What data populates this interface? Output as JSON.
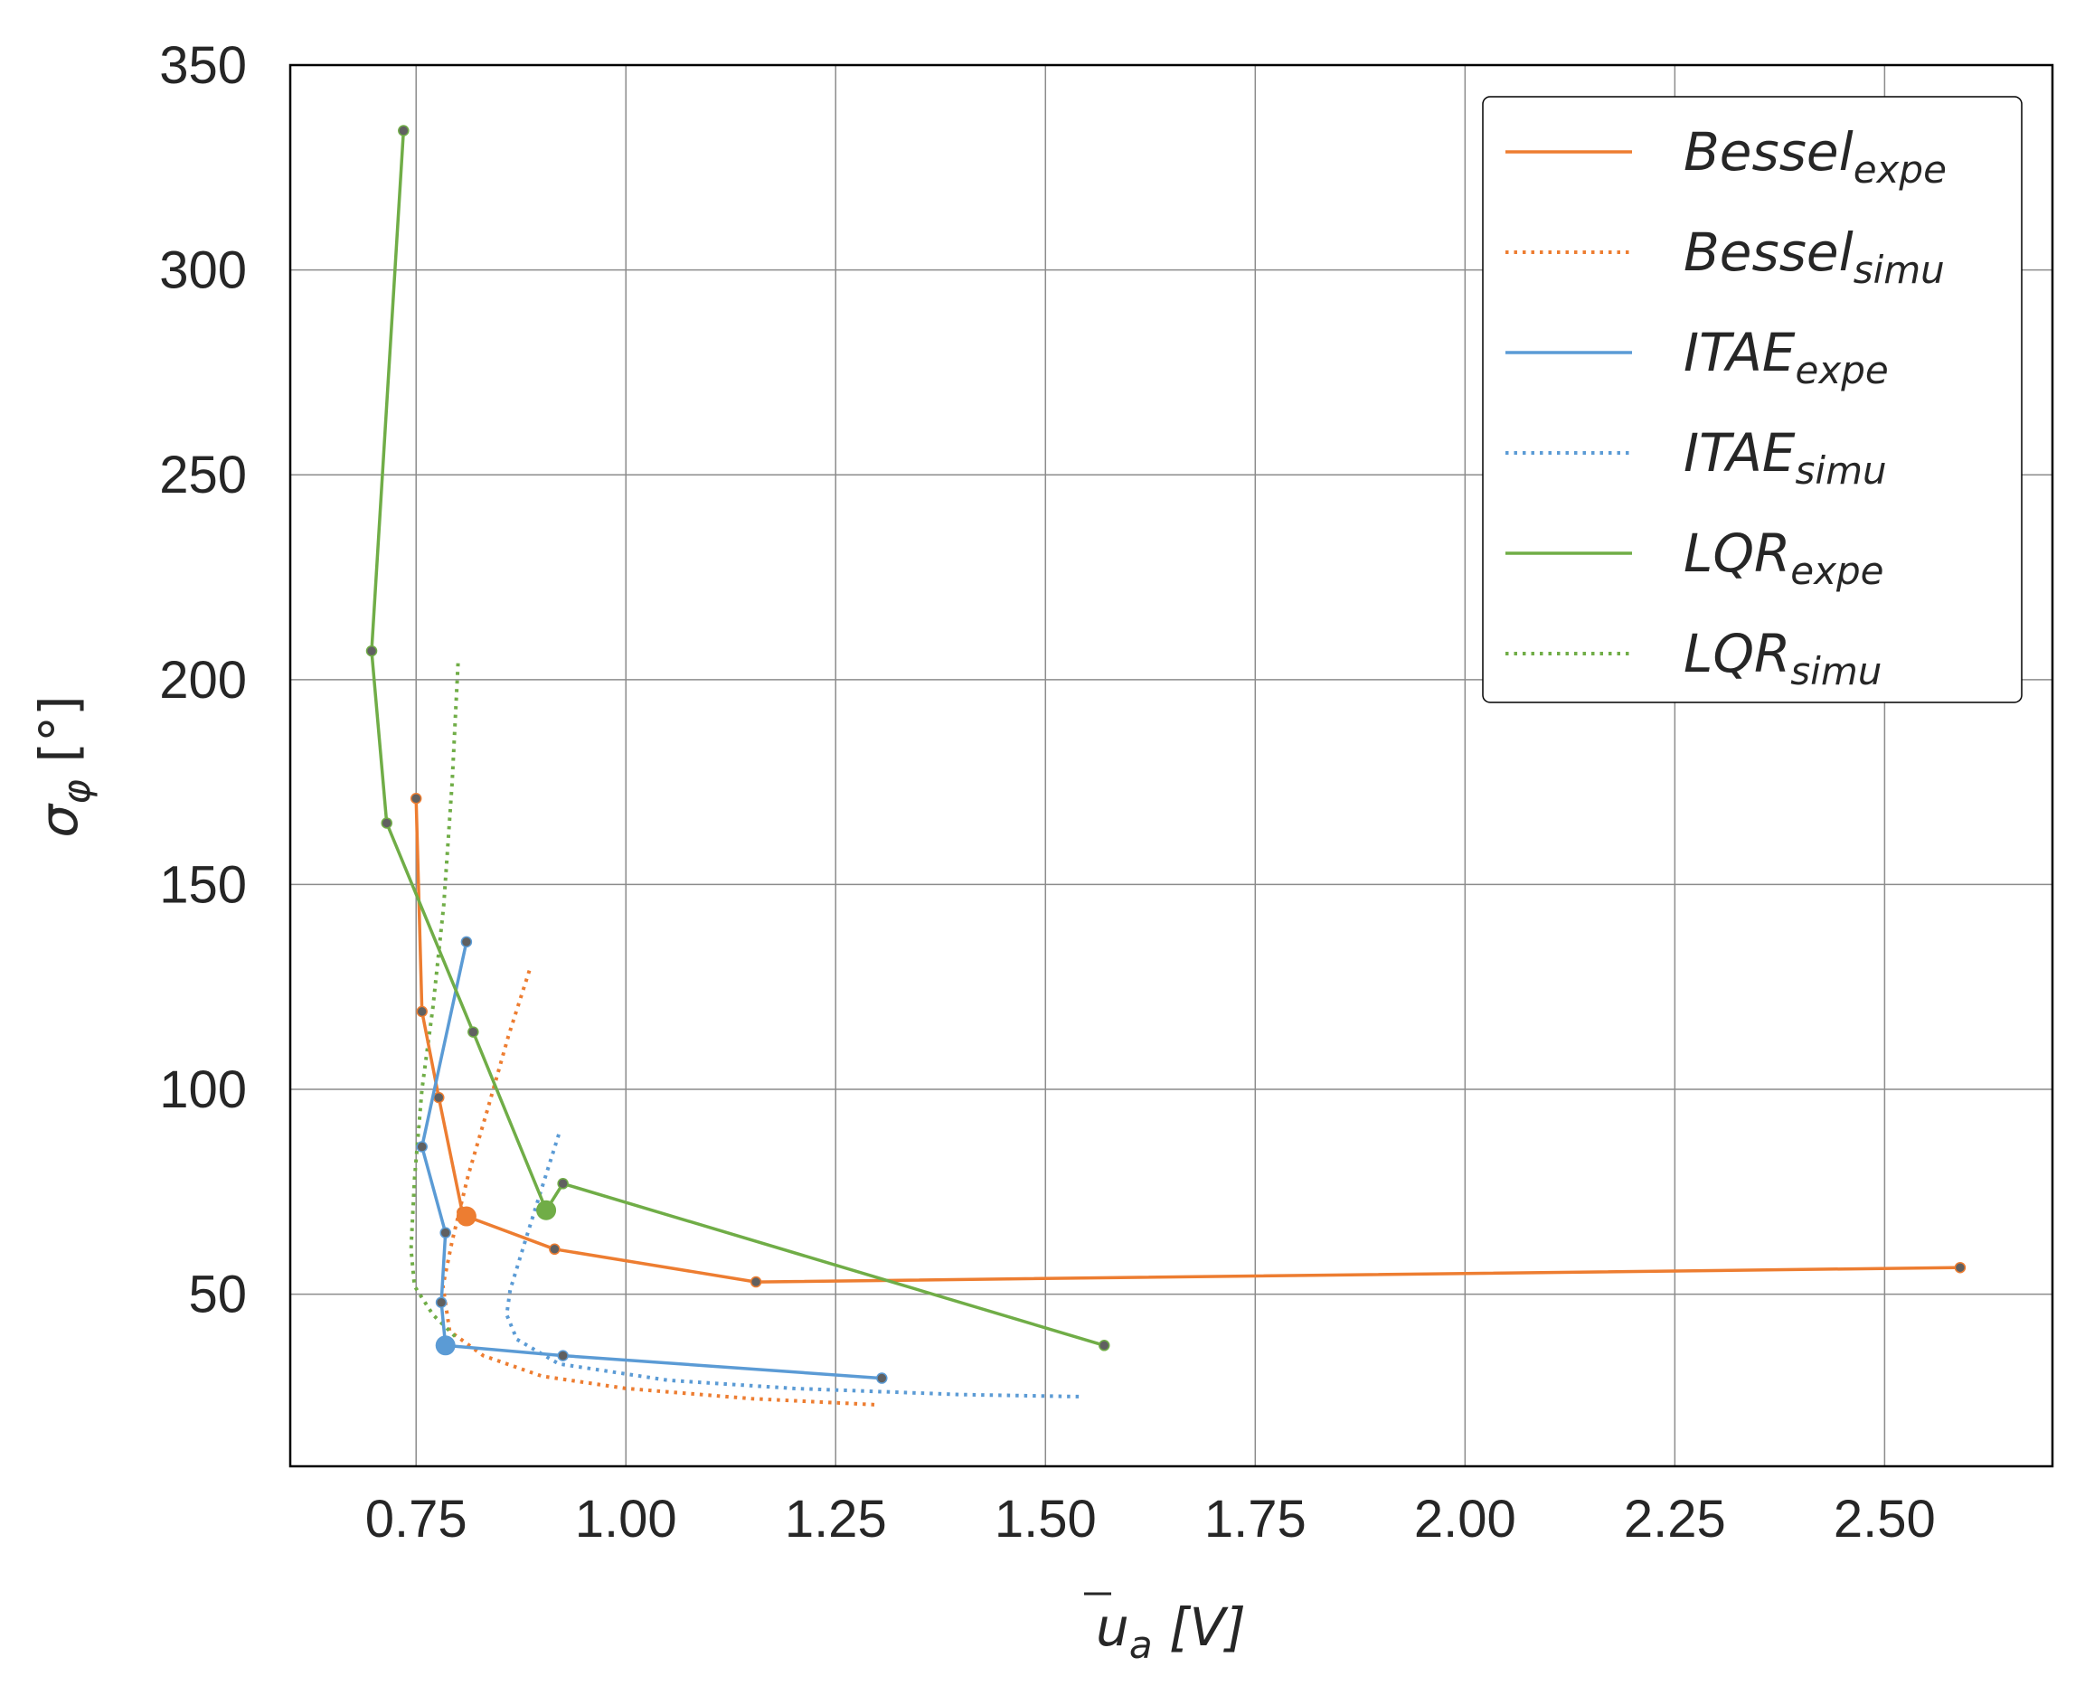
{
  "chart_data": {
    "type": "line",
    "xlabel_main": "u",
    "xlabel_sub": "a",
    "xlabel_unit": "[V]",
    "ylabel_main": "σ",
    "ylabel_sub": "φ",
    "ylabel_unit": "[°]",
    "xlim": [
      0.6,
      2.7
    ],
    "ylim": [
      8,
      350
    ],
    "xticks": [
      0.75,
      1.0,
      1.25,
      1.5,
      1.75,
      2.0,
      2.25,
      2.5
    ],
    "xtick_labels": [
      "0.75",
      "1.00",
      "1.25",
      "1.50",
      "1.75",
      "2.00",
      "2.25",
      "2.50"
    ],
    "yticks": [
      50,
      100,
      150,
      200,
      250,
      300,
      350
    ],
    "ytick_labels": [
      "50",
      "100",
      "150",
      "200",
      "250",
      "300",
      "350"
    ],
    "grid": true,
    "legend_position": "top-right",
    "series": [
      {
        "label_main": "Bessel",
        "label_sub": "expe",
        "style": "solid",
        "color": "#ed7d31",
        "highlight": [
          0.81,
          69
        ],
        "points": [
          [
            0.75,
            171
          ],
          [
            0.757,
            119
          ],
          [
            0.777,
            98
          ],
          [
            0.805,
            70
          ],
          [
            0.81,
            69
          ],
          [
            0.915,
            61
          ],
          [
            1.155,
            53
          ],
          [
            2.59,
            56.5
          ]
        ]
      },
      {
        "label_main": "Bessel",
        "label_sub": "simu",
        "style": "dotted",
        "color": "#ed7d31",
        "points": [
          [
            0.885,
            129
          ],
          [
            0.86,
            113
          ],
          [
            0.835,
            95
          ],
          [
            0.812,
            79
          ],
          [
            0.793,
            63
          ],
          [
            0.782,
            52
          ],
          [
            0.79,
            41
          ],
          [
            0.83,
            35
          ],
          [
            0.9,
            30
          ],
          [
            1.0,
            27
          ],
          [
            1.15,
            24.5
          ],
          [
            1.3,
            23
          ]
        ]
      },
      {
        "label_main": "ITAE",
        "label_sub": "expe",
        "style": "solid",
        "color": "#5b9bd5",
        "highlight": [
          0.785,
          37.5
        ],
        "points": [
          [
            0.81,
            136
          ],
          [
            0.757,
            86
          ],
          [
            0.785,
            65
          ],
          [
            0.78,
            48
          ],
          [
            0.785,
            37.5
          ],
          [
            0.925,
            35
          ],
          [
            1.305,
            29.5
          ]
        ]
      },
      {
        "label_main": "ITAE",
        "label_sub": "simu",
        "style": "dotted",
        "color": "#5b9bd5",
        "points": [
          [
            0.92,
            89
          ],
          [
            0.9,
            76
          ],
          [
            0.88,
            63
          ],
          [
            0.862,
            51
          ],
          [
            0.858,
            45
          ],
          [
            0.87,
            39
          ],
          [
            0.92,
            33
          ],
          [
            1.05,
            29
          ],
          [
            1.2,
            27
          ],
          [
            1.4,
            25.5
          ],
          [
            1.545,
            25
          ]
        ]
      },
      {
        "label_main": "LQR",
        "label_sub": "expe",
        "style": "solid",
        "color": "#70ad47",
        "highlight": [
          0.905,
          70.5
        ],
        "points": [
          [
            0.735,
            334
          ],
          [
            0.697,
            207
          ],
          [
            0.715,
            165
          ],
          [
            0.818,
            114
          ],
          [
            0.905,
            70.5
          ],
          [
            0.925,
            77
          ],
          [
            1.57,
            37.5
          ]
        ]
      },
      {
        "label_main": "LQR",
        "label_sub": "simu",
        "style": "dotted",
        "color": "#70ad47",
        "points": [
          [
            0.8,
            204
          ],
          [
            0.793,
            175
          ],
          [
            0.783,
            145
          ],
          [
            0.77,
            120
          ],
          [
            0.757,
            100
          ],
          [
            0.748,
            78
          ],
          [
            0.744,
            61
          ],
          [
            0.748,
            52
          ],
          [
            0.77,
            45
          ],
          [
            0.8,
            39
          ]
        ]
      }
    ]
  }
}
